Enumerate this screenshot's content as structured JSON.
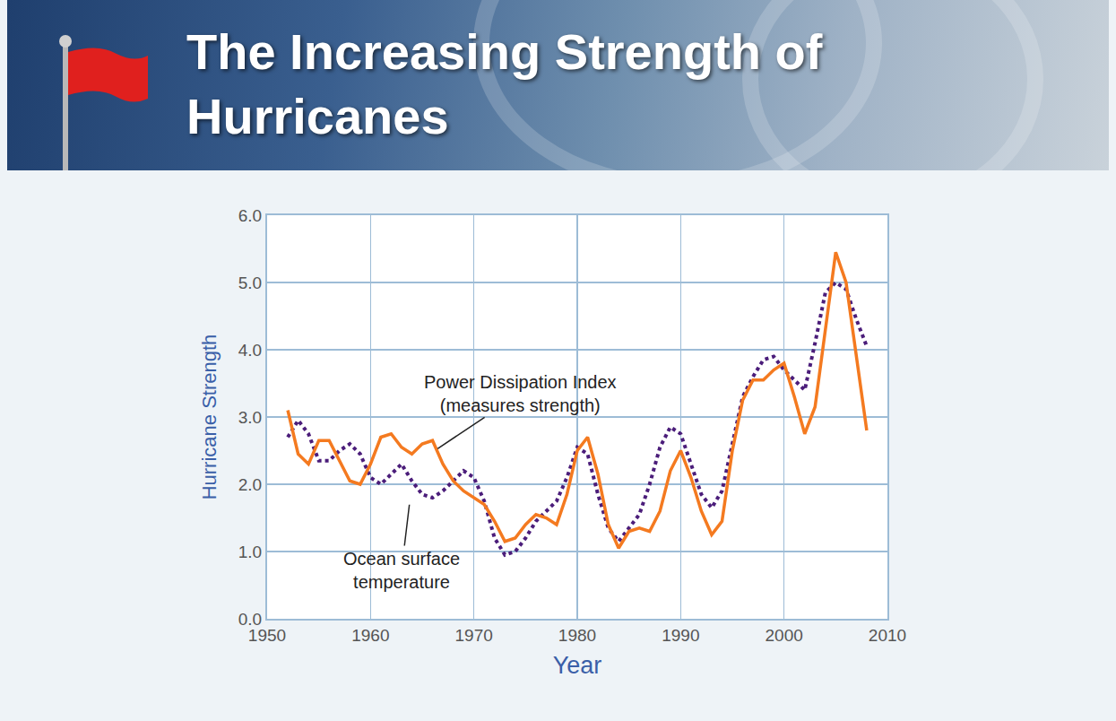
{
  "chart_data": {
    "type": "line",
    "title": "The Increasing Strength of Hurricanes",
    "x_label": "Year",
    "y_label": "Hurricane Strength",
    "x": [
      1952,
      1953,
      1954,
      1955,
      1956,
      1957,
      1958,
      1959,
      1960,
      1961,
      1962,
      1963,
      1964,
      1965,
      1966,
      1967,
      1968,
      1969,
      1970,
      1971,
      1972,
      1973,
      1974,
      1975,
      1976,
      1977,
      1978,
      1979,
      1980,
      1981,
      1982,
      1983,
      1984,
      1985,
      1986,
      1987,
      1988,
      1989,
      1990,
      1991,
      1992,
      1993,
      1994,
      1995,
      1996,
      1997,
      1998,
      1999,
      2000,
      2001,
      2002,
      2003,
      2004,
      2005,
      2006,
      2007,
      2008
    ],
    "series": [
      {
        "name": "Power Dissipation Index\n(measures strength)",
        "color": "#f47a20",
        "line_style": "solid",
        "values": [
          3.1,
          2.45,
          2.3,
          2.65,
          2.65,
          2.35,
          2.05,
          2.0,
          2.3,
          2.7,
          2.75,
          2.55,
          2.45,
          2.6,
          2.65,
          2.3,
          2.05,
          1.9,
          1.8,
          1.7,
          1.45,
          1.15,
          1.2,
          1.4,
          1.55,
          1.5,
          1.4,
          1.85,
          2.5,
          2.7,
          2.15,
          1.4,
          1.05,
          1.3,
          1.35,
          1.3,
          1.6,
          2.2,
          2.5,
          2.1,
          1.6,
          1.25,
          1.45,
          2.5,
          3.25,
          3.55,
          3.55,
          3.7,
          3.8,
          3.3,
          2.75,
          3.15,
          4.3,
          5.45,
          5.0,
          3.9,
          2.8
        ]
      },
      {
        "name": "Ocean surface\ntemperature",
        "color": "#4b1d7a",
        "line_style": "dotted",
        "values": [
          2.7,
          2.95,
          2.75,
          2.35,
          2.35,
          2.5,
          2.6,
          2.45,
          2.1,
          2.0,
          2.15,
          2.3,
          2.05,
          1.85,
          1.8,
          1.9,
          2.05,
          2.2,
          2.1,
          1.75,
          1.2,
          0.95,
          1.0,
          1.2,
          1.45,
          1.6,
          1.75,
          2.1,
          2.55,
          2.45,
          1.85,
          1.35,
          1.15,
          1.35,
          1.55,
          2.0,
          2.55,
          2.85,
          2.75,
          2.3,
          1.85,
          1.65,
          1.9,
          2.6,
          3.3,
          3.6,
          3.85,
          3.9,
          3.7,
          3.55,
          3.4,
          4.1,
          4.85,
          5.0,
          4.9,
          4.45,
          4.05
        ]
      }
    ],
    "xlim": [
      1950,
      2010
    ],
    "xticks": [
      1950,
      1960,
      1970,
      1980,
      1990,
      2000,
      2010
    ],
    "ylim": [
      0,
      6
    ],
    "yticks": [
      {
        "value": 0,
        "label": "0.0"
      },
      {
        "value": 1,
        "label": "1.0"
      },
      {
        "value": 2,
        "label": "2.0"
      },
      {
        "value": 3,
        "label": "3.0"
      },
      {
        "value": 4,
        "label": "4.0"
      },
      {
        "value": 5,
        "label": "5.0"
      },
      {
        "value": 6,
        "label": "6.0"
      }
    ],
    "grid": true,
    "legend": false
  }
}
